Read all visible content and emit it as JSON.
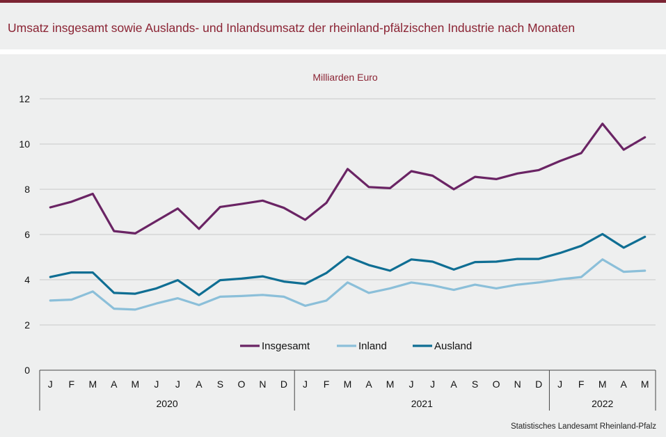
{
  "header": {
    "title": "Umsatz insgesamt sowie Auslands- und Inlandsumsatz der rheinland-pfälzischen Industrie nach Monaten"
  },
  "source": "Statistisches Landesamt  Rheinland-Pfalz",
  "colors": {
    "accent": "#7b2433",
    "insgesamt": "#6a2464",
    "inland": "#8bbfd9",
    "ausland": "#0f6e93"
  },
  "chart_data": {
    "type": "line",
    "unit_label": "Milliarden Euro",
    "ylim": [
      0,
      12
    ],
    "yticks": [
      "0",
      "2",
      "4",
      "6",
      "8",
      "10",
      "12"
    ],
    "grid": true,
    "legend_position": "bottom-center",
    "categories": [
      "J",
      "F",
      "M",
      "A",
      "M",
      "J",
      "J",
      "A",
      "S",
      "O",
      "N",
      "D",
      "J",
      "F",
      "M",
      "A",
      "M",
      "J",
      "J",
      "A",
      "S",
      "O",
      "N",
      "D",
      "J",
      "F",
      "M",
      "A",
      "M"
    ],
    "years": [
      {
        "label": "2020",
        "months": 12
      },
      {
        "label": "2021",
        "months": 12
      },
      {
        "label": "2022",
        "months": 5
      }
    ],
    "series": [
      {
        "name": "Insgesamt",
        "values": [
          7.2,
          7.45,
          7.8,
          6.15,
          6.05,
          6.6,
          7.15,
          6.25,
          7.22,
          7.35,
          7.5,
          7.18,
          6.65,
          7.4,
          8.9,
          8.1,
          8.05,
          8.8,
          8.6,
          8.0,
          8.55,
          8.45,
          8.7,
          8.85,
          9.25,
          9.6,
          10.9,
          9.75,
          10.3
        ]
      },
      {
        "name": "Inland",
        "values": [
          3.08,
          3.12,
          3.48,
          2.72,
          2.68,
          2.95,
          3.18,
          2.88,
          3.25,
          3.28,
          3.33,
          3.25,
          2.85,
          3.08,
          3.88,
          3.42,
          3.62,
          3.88,
          3.75,
          3.55,
          3.78,
          3.62,
          3.78,
          3.88,
          4.02,
          4.12,
          4.9,
          4.35,
          4.4
        ]
      },
      {
        "name": "Ausland",
        "values": [
          4.12,
          4.32,
          4.32,
          3.42,
          3.38,
          3.62,
          3.98,
          3.32,
          3.98,
          4.05,
          4.15,
          3.92,
          3.82,
          4.3,
          5.02,
          4.65,
          4.4,
          4.9,
          4.8,
          4.45,
          4.78,
          4.8,
          4.92,
          4.92,
          5.18,
          5.5,
          6.02,
          5.42,
          5.9
        ]
      }
    ]
  }
}
